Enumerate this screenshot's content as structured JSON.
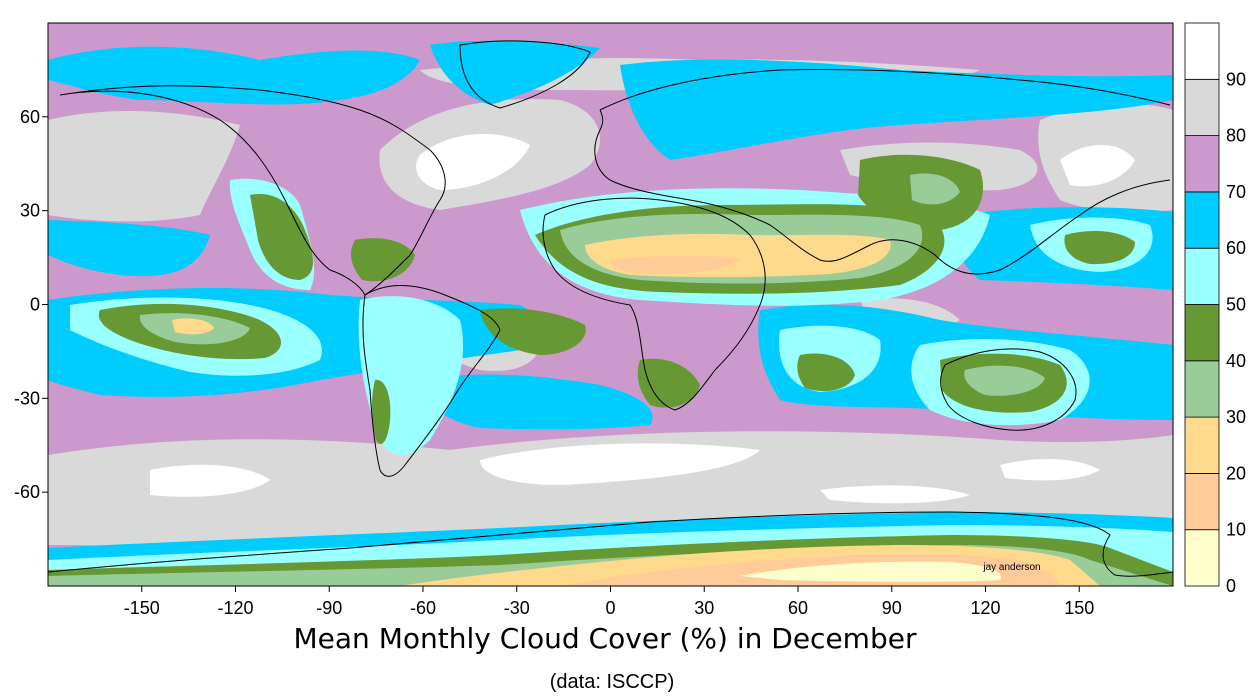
{
  "title": "Mean Monthly Cloud Cover (%) in December",
  "subtitle": "(data: ISCCP)",
  "credit": "jay anderson",
  "map": {
    "projection": "equirectangular",
    "lon_range": [
      -180,
      180
    ],
    "lat_range": [
      -90,
      90
    ],
    "x_ticks": [
      -150,
      -120,
      -90,
      -60,
      -30,
      0,
      30,
      60,
      90,
      120,
      150
    ],
    "y_ticks": [
      60,
      30,
      0,
      -30,
      -60
    ]
  },
  "legend": {
    "ticks": [
      "0",
      "10",
      "20",
      "30",
      "40",
      "50",
      "60",
      "70",
      "80",
      "90"
    ],
    "bins": [
      {
        "min": 0,
        "max": 10,
        "color": "#ffffcc"
      },
      {
        "min": 10,
        "max": 20,
        "color": "#ffcc99"
      },
      {
        "min": 20,
        "max": 30,
        "color": "#ffd98c"
      },
      {
        "min": 30,
        "max": 40,
        "color": "#99cc99"
      },
      {
        "min": 40,
        "max": 50,
        "color": "#669933"
      },
      {
        "min": 50,
        "max": 60,
        "color": "#99ffff"
      },
      {
        "min": 60,
        "max": 70,
        "color": "#00ccff"
      },
      {
        "min": 70,
        "max": 80,
        "color": "#cc99cc"
      },
      {
        "min": 80,
        "max": 90,
        "color": "#d9d9d9"
      },
      {
        "min": 90,
        "max": 100,
        "color": "#ffffff"
      }
    ]
  },
  "colors": {
    "frame": "#000000",
    "coastline": "#000000"
  }
}
